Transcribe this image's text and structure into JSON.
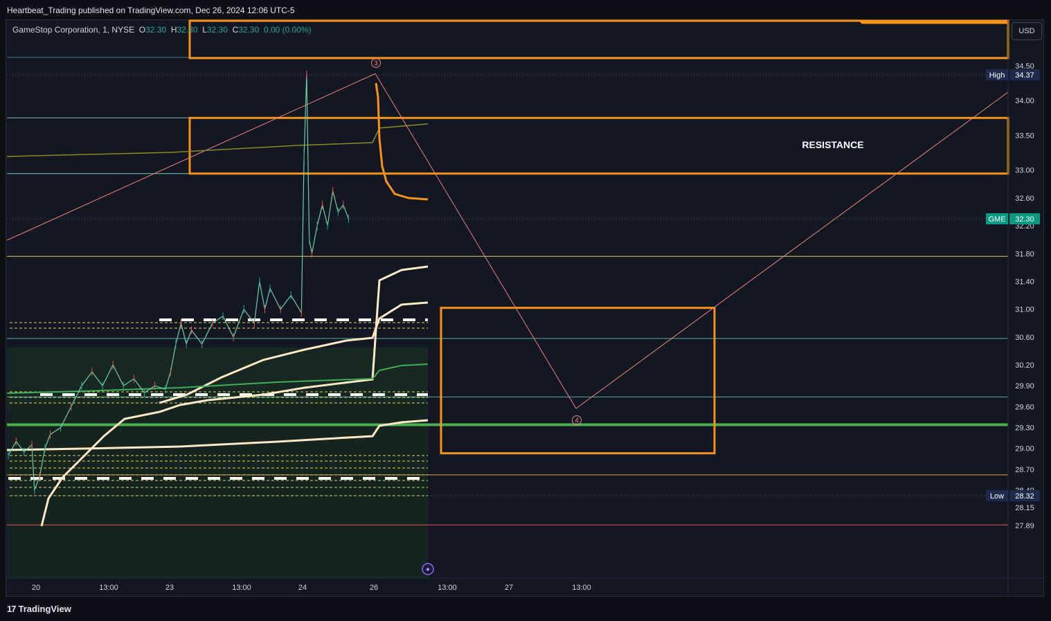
{
  "header": {
    "published": "Heartbeat_Trading published on TradingView.com, Dec 26, 2024 12:06 UTC-5"
  },
  "legend": {
    "symbol": "GameStop Corporation, 1, NYSE",
    "o_label": "O",
    "o_value": "32.30",
    "h_label": "H",
    "h_value": "32.30",
    "l_label": "L",
    "l_value": "32.30",
    "c_label": "C",
    "c_value": "32.30",
    "change": "0.00 (0.00%)"
  },
  "currency_button": "USD",
  "footer_logo": "TradingView",
  "colors": {
    "background": "#131722",
    "resistance_box": "#f7931a",
    "vwap": "#fde9c5",
    "support_green": "#4caf50",
    "trendline": "#f08080",
    "up_tag": "#089981",
    "price_axis_text": "#d1d4dc"
  },
  "chart_data": {
    "type": "line",
    "title": "",
    "price_axis": {
      "ticks": [
        "34.50",
        "34.00",
        "33.50",
        "33.00",
        "32.60",
        "32.20",
        "31.80",
        "31.40",
        "31.00",
        "30.60",
        "30.20",
        "29.90",
        "29.60",
        "29.30",
        "29.00",
        "28.70",
        "28.40",
        "28.15",
        "27.89"
      ],
      "ylim": [
        27.8,
        35.0
      ]
    },
    "time_axis": {
      "ticks": [
        "20",
        "13:00",
        "23",
        "13:00",
        "24",
        "26",
        "13:00",
        "27",
        "13:00"
      ]
    },
    "price_tags": [
      {
        "label": "High",
        "value": "34.37",
        "color": "#1e2a4a"
      },
      {
        "label": "GME",
        "value": "32.30",
        "color": "#089981"
      },
      {
        "label": "Low",
        "value": "28.32",
        "color": "#1e2a4a"
      }
    ],
    "annotations": [
      {
        "text": "RESISTANCE"
      },
      {
        "text": "3"
      },
      {
        "text": "4"
      }
    ],
    "horizontal_levels": [
      34.62,
      33.75,
      32.95,
      31.76,
      30.58,
      29.74,
      29.34,
      28.62,
      27.9
    ],
    "resistance_zone": [
      32.95,
      33.75
    ],
    "target_zone": [
      28.93,
      31.02
    ],
    "price_path": [
      [
        0,
        28.9
      ],
      [
        3,
        29.1
      ],
      [
        6,
        28.95
      ],
      [
        9,
        29.05
      ],
      [
        10,
        28.4
      ],
      [
        12,
        28.6
      ],
      [
        14,
        29.0
      ],
      [
        16,
        29.2
      ],
      [
        20,
        29.3
      ],
      [
        24,
        29.6
      ],
      [
        28,
        29.9
      ],
      [
        32,
        30.1
      ],
      [
        36,
        29.9
      ],
      [
        40,
        30.2
      ],
      [
        44,
        29.9
      ],
      [
        48,
        30.0
      ],
      [
        52,
        29.8
      ],
      [
        56,
        29.9
      ],
      [
        60,
        29.85
      ],
      [
        62,
        30.1
      ],
      [
        64,
        30.5
      ],
      [
        66,
        30.8
      ],
      [
        68,
        30.5
      ],
      [
        70,
        30.7
      ],
      [
        74,
        30.5
      ],
      [
        78,
        30.8
      ],
      [
        82,
        30.9
      ],
      [
        86,
        30.6
      ],
      [
        90,
        31.0
      ],
      [
        94,
        30.8
      ],
      [
        96,
        31.4
      ],
      [
        98,
        31.0
      ],
      [
        100,
        31.3
      ],
      [
        104,
        31.0
      ],
      [
        108,
        31.2
      ],
      [
        112,
        30.95
      ],
      [
        113,
        33.2
      ],
      [
        114,
        34.37
      ],
      [
        115,
        32.0
      ],
      [
        116,
        31.8
      ],
      [
        118,
        32.2
      ],
      [
        120,
        32.5
      ],
      [
        122,
        32.2
      ],
      [
        124,
        32.7
      ],
      [
        126,
        32.4
      ],
      [
        128,
        32.5
      ],
      [
        130,
        32.3
      ]
    ],
    "projection_wave": [
      {
        "label": "3",
        "x": 114,
        "y": 34.37
      },
      {
        "label": "4",
        "x": 176,
        "y": 29.85
      },
      {
        "label": "end",
        "x": 300,
        "y": 33.95
      }
    ]
  }
}
